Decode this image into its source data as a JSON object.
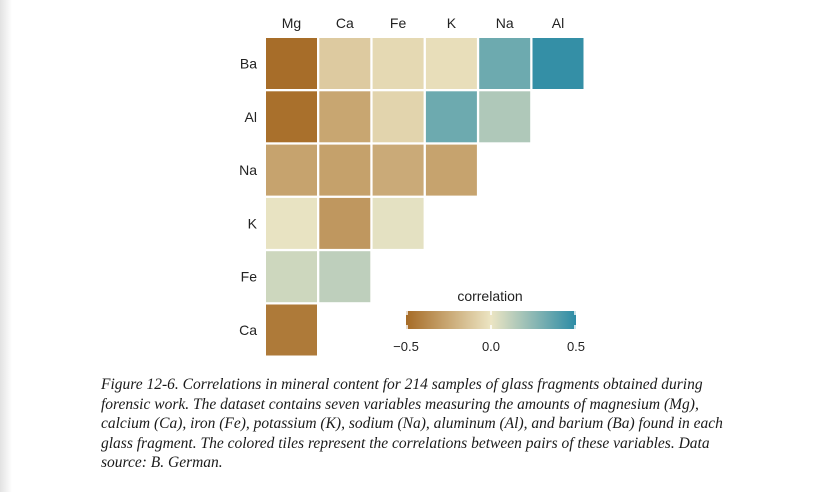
{
  "chart_data": {
    "type": "heatmap",
    "columns": [
      "Mg",
      "Ca",
      "Fe",
      "K",
      "Na",
      "Al"
    ],
    "rows": [
      "Ba",
      "Al",
      "Na",
      "K",
      "Fe",
      "Ca"
    ],
    "values": [
      [
        -0.49,
        -0.11,
        -0.05,
        -0.03,
        0.33,
        0.48
      ],
      [
        -0.48,
        -0.26,
        -0.07,
        0.33,
        0.16,
        null
      ],
      [
        -0.27,
        -0.28,
        -0.24,
        -0.27,
        null,
        null
      ],
      [
        0.01,
        -0.32,
        0.02,
        null,
        null,
        null
      ],
      [
        0.08,
        0.12,
        null,
        null,
        null,
        null
      ],
      [
        -0.44,
        null,
        null,
        null,
        null,
        null
      ]
    ],
    "legend": {
      "title": "correlation",
      "ticks": [
        "−0.5",
        "0.0",
        "0.5"
      ],
      "range": [
        -0.5,
        0.5
      ]
    }
  },
  "caption": "Figure 12-6. Correlations in mineral content for 214 samples of glass fragments obtained during forensic work. The dataset contains seven variables measuring the amounts of magnesium (Mg), calcium (Ca), iron (Fe), potassium (K), sodium (Na), aluminum (Al), and barium (Ba) found in each glass fragment. The colored tiles represent the correlations between pairs of these variables. Data source: B. German.",
  "colors": {
    "negative": "#a66b26",
    "neutral": "#ece5c3",
    "positive": "#2c8ba5"
  }
}
